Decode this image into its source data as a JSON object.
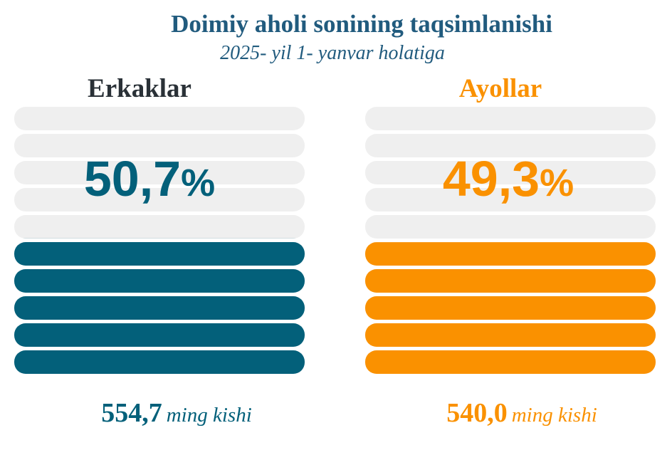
{
  "title": "Doimiy aholi sonining taqsimlanishi",
  "subtitle": "2025- yil 1- yanvar holatiga",
  "colors": {
    "title": "#215b7e",
    "men": "#03607a",
    "women": "#fa9100",
    "track": "#efefef",
    "label_dark": "#2a3137"
  },
  "chart_data": {
    "type": "bar",
    "title": "Doimiy aholi sonining taqsimlanishi",
    "subtitle": "2025- yil 1- yanvar holatiga",
    "categories": [
      "Erkaklar",
      "Ayollar"
    ],
    "series": [
      {
        "name": "Erkaklar",
        "percent_label": "50,7",
        "percent_value": 50.7,
        "count_label": "554,7",
        "count_value": 554.7,
        "unit": "ming kishi"
      },
      {
        "name": "Ayollar",
        "percent_label": "49,3",
        "percent_value": 49.3,
        "count_label": "540,0",
        "count_value": 540.0,
        "unit": "ming kishi"
      }
    ],
    "percent_sign": "%",
    "ylim": [
      0,
      100
    ]
  }
}
